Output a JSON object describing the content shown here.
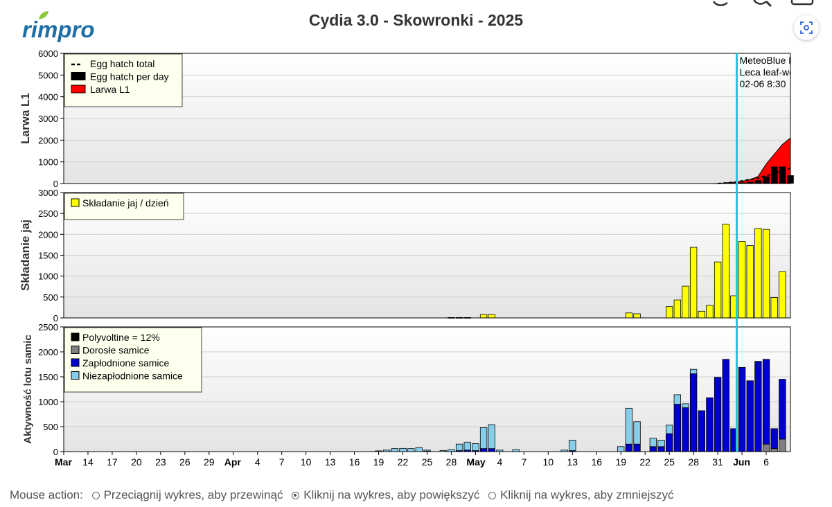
{
  "app": {
    "logo_text": "rimpro",
    "title": "Cydia 3.0 - Skowronki - 2025"
  },
  "mouse_action": {
    "label": "Mouse action:",
    "options": [
      {
        "label": "Przeciągnij wykres, aby przewinąć",
        "selected": false
      },
      {
        "label": "Kliknij na wykres, aby powiększyć",
        "selected": true
      },
      {
        "label": "Kliknij na wykres, aby zmniejszyć",
        "selected": false
      }
    ]
  },
  "colors": {
    "accent_line": "#26c6da",
    "larwa": "#ff0000",
    "egg_bar": "#000000",
    "skladanie": "#ffff00",
    "polyvoltine": "#000000",
    "dorosle": "#808080",
    "zaplodnione": "#0000cc",
    "niezaplodnione": "#87ceeb",
    "logo_blue": "#1d6fa5",
    "logo_leaf": "#8dc63f"
  },
  "icons": [
    "search-icon",
    "print-icon",
    "focus-icon"
  ],
  "chart_data": {
    "type": "bar",
    "x_axis": {
      "start": "2025-03-11",
      "end": "2025-06-09",
      "tick_labels": [
        "Mar",
        "14",
        "17",
        "20",
        "23",
        "26",
        "29",
        "Apr",
        "4",
        "7",
        "10",
        "13",
        "16",
        "19",
        "22",
        "25",
        "28",
        "May",
        "4",
        "7",
        "10",
        "13",
        "16",
        "19",
        "22",
        "25",
        "28",
        "31",
        "Jun",
        "6"
      ],
      "tick_dates": [
        "2025-03-11",
        "2025-03-14",
        "2025-03-17",
        "2025-03-20",
        "2025-03-23",
        "2025-03-26",
        "2025-03-29",
        "2025-04-01",
        "2025-04-04",
        "2025-04-07",
        "2025-04-10",
        "2025-04-13",
        "2025-04-16",
        "2025-04-19",
        "2025-04-22",
        "2025-04-25",
        "2025-04-28",
        "2025-05-01",
        "2025-05-04",
        "2025-05-07",
        "2025-05-10",
        "2025-05-13",
        "2025-05-16",
        "2025-05-19",
        "2025-05-22",
        "2025-05-25",
        "2025-05-28",
        "2025-05-31",
        "2025-06-03",
        "2025-06-06"
      ],
      "bold_labels": [
        "Mar",
        "Apr",
        "May",
        "Jun"
      ]
    },
    "forecast_marker": {
      "date": "2025-06-02",
      "lines": [
        "MeteoBlue Prognoza",
        "Leca leaf-wetness",
        "02-06 8:30"
      ]
    },
    "panels": [
      {
        "id": "larwa",
        "ylabel": "Larwa L1",
        "ylim": [
          0,
          6000
        ],
        "yticks": [
          0,
          1000,
          2000,
          3000,
          4000,
          5000,
          6000
        ],
        "legend": [
          "Egg hatch total",
          "Egg hatch per day",
          "Larwa L1"
        ],
        "larwa_area": [
          {
            "date": "2025-05-31",
            "value": 0
          },
          {
            "date": "2025-06-01",
            "value": 30
          },
          {
            "date": "2025-06-02",
            "value": 60
          },
          {
            "date": "2025-06-03",
            "value": 100
          },
          {
            "date": "2025-06-04",
            "value": 180
          },
          {
            "date": "2025-06-05",
            "value": 330
          },
          {
            "date": "2025-06-06",
            "value": 900
          },
          {
            "date": "2025-06-07",
            "value": 1350
          },
          {
            "date": "2025-06-08",
            "value": 1800
          },
          {
            "date": "2025-06-09",
            "value": 2100
          }
        ],
        "egg_hatch_total": [
          {
            "date": "2025-05-31",
            "value": 0
          },
          {
            "date": "2025-06-02",
            "value": 60
          },
          {
            "date": "2025-06-05",
            "value": 250
          },
          {
            "date": "2025-06-09",
            "value": 700
          }
        ],
        "egg_hatch_per_day": [
          {
            "date": "2025-05-30",
            "value": 10
          },
          {
            "date": "2025-05-31",
            "value": 20
          },
          {
            "date": "2025-06-01",
            "value": 30
          },
          {
            "date": "2025-06-02",
            "value": 30
          },
          {
            "date": "2025-06-03",
            "value": 50
          },
          {
            "date": "2025-06-04",
            "value": 80
          },
          {
            "date": "2025-06-05",
            "value": 150
          },
          {
            "date": "2025-06-06",
            "value": 330
          },
          {
            "date": "2025-06-07",
            "value": 780
          },
          {
            "date": "2025-06-08",
            "value": 780
          },
          {
            "date": "2025-06-09",
            "value": 380
          }
        ]
      },
      {
        "id": "skladanie",
        "ylabel": "Składanie jaj",
        "ylim": [
          0,
          3000
        ],
        "yticks": [
          0,
          500,
          1000,
          1500,
          2000,
          2500,
          3000
        ],
        "legend": [
          "Składanie jaj / dzień"
        ],
        "series": [
          {
            "date": "2025-04-28",
            "value": 10
          },
          {
            "date": "2025-04-29",
            "value": 10
          },
          {
            "date": "2025-04-30",
            "value": 10
          },
          {
            "date": "2025-05-02",
            "value": 80
          },
          {
            "date": "2025-05-03",
            "value": 80
          },
          {
            "date": "2025-05-20",
            "value": 120
          },
          {
            "date": "2025-05-21",
            "value": 100
          },
          {
            "date": "2025-05-25",
            "value": 270
          },
          {
            "date": "2025-05-26",
            "value": 430
          },
          {
            "date": "2025-05-27",
            "value": 760
          },
          {
            "date": "2025-05-28",
            "value": 1690
          },
          {
            "date": "2025-05-29",
            "value": 160
          },
          {
            "date": "2025-05-30",
            "value": 300
          },
          {
            "date": "2025-05-31",
            "value": 1340
          },
          {
            "date": "2025-06-01",
            "value": 2240
          },
          {
            "date": "2025-06-02",
            "value": 530
          },
          {
            "date": "2025-06-03",
            "value": 1830
          },
          {
            "date": "2025-06-04",
            "value": 1730
          },
          {
            "date": "2025-06-05",
            "value": 2140
          },
          {
            "date": "2025-06-06",
            "value": 2120
          },
          {
            "date": "2025-06-07",
            "value": 490
          },
          {
            "date": "2025-06-08",
            "value": 1110
          }
        ]
      },
      {
        "id": "aktywnosc",
        "ylabel": "Aktywność lotu samic",
        "ylim": [
          0,
          2500
        ],
        "yticks": [
          0,
          500,
          1000,
          1500,
          2000,
          2500
        ],
        "legend": [
          "Polyvoltine = 12%",
          "Dorosłe samice",
          "Zapłodnione samice",
          "Niezapłodnione samice"
        ],
        "series": [
          {
            "date": "2025-04-19",
            "dorosle": 0,
            "zaplodnione": 0,
            "niezaplodnione": 15
          },
          {
            "date": "2025-04-20",
            "dorosle": 0,
            "zaplodnione": 0,
            "niezaplodnione": 30
          },
          {
            "date": "2025-04-21",
            "dorosle": 0,
            "zaplodnione": 0,
            "niezaplodnione": 60
          },
          {
            "date": "2025-04-22",
            "dorosle": 0,
            "zaplodnione": 0,
            "niezaplodnione": 65
          },
          {
            "date": "2025-04-23",
            "dorosle": 0,
            "zaplodnione": 0,
            "niezaplodnione": 60
          },
          {
            "date": "2025-04-24",
            "dorosle": 0,
            "zaplodnione": 0,
            "niezaplodnione": 80
          },
          {
            "date": "2025-04-25",
            "dorosle": 0,
            "zaplodnione": 10,
            "niezaplodnione": 20
          },
          {
            "date": "2025-04-27",
            "dorosle": 0,
            "zaplodnione": 0,
            "niezaplodnione": 20
          },
          {
            "date": "2025-04-28",
            "dorosle": 0,
            "zaplodnione": 0,
            "niezaplodnione": 40
          },
          {
            "date": "2025-04-29",
            "dorosle": 0,
            "zaplodnione": 20,
            "niezaplodnione": 130
          },
          {
            "date": "2025-04-30",
            "dorosle": 0,
            "zaplodnione": 30,
            "niezaplodnione": 160
          },
          {
            "date": "2025-05-01",
            "dorosle": 0,
            "zaplodnione": 20,
            "niezaplodnione": 140
          },
          {
            "date": "2025-05-02",
            "dorosle": 0,
            "zaplodnione": 60,
            "niezaplodnione": 420
          },
          {
            "date": "2025-05-03",
            "dorosle": 0,
            "zaplodnione": 60,
            "niezaplodnione": 480
          },
          {
            "date": "2025-05-04",
            "dorosle": 0,
            "zaplodnione": 0,
            "niezaplodnione": 30
          },
          {
            "date": "2025-05-06",
            "dorosle": 0,
            "zaplodnione": 0,
            "niezaplodnione": 40
          },
          {
            "date": "2025-05-12",
            "dorosle": 0,
            "zaplodnione": 0,
            "niezaplodnione": 30
          },
          {
            "date": "2025-05-13",
            "dorosle": 0,
            "zaplodnione": 20,
            "niezaplodnione": 210
          },
          {
            "date": "2025-05-19",
            "dorosle": 0,
            "zaplodnione": 0,
            "niezaplodnione": 100
          },
          {
            "date": "2025-05-20",
            "dorosle": 0,
            "zaplodnione": 150,
            "niezaplodnione": 720
          },
          {
            "date": "2025-05-21",
            "dorosle": 0,
            "zaplodnione": 150,
            "niezaplodnione": 450
          },
          {
            "date": "2025-05-23",
            "dorosle": 0,
            "zaplodnione": 100,
            "niezaplodnione": 170
          },
          {
            "date": "2025-05-24",
            "dorosle": 0,
            "zaplodnione": 100,
            "niezaplodnione": 130
          },
          {
            "date": "2025-05-25",
            "dorosle": 0,
            "zaplodnione": 360,
            "niezaplodnione": 170
          },
          {
            "date": "2025-05-26",
            "dorosle": 0,
            "zaplodnione": 950,
            "niezaplodnione": 190
          },
          {
            "date": "2025-05-27",
            "dorosle": 0,
            "zaplodnione": 880,
            "niezaplodnione": 80
          },
          {
            "date": "2025-05-28",
            "dorosle": 0,
            "zaplodnione": 1560,
            "niezaplodnione": 90
          },
          {
            "date": "2025-05-29",
            "dorosle": 0,
            "zaplodnione": 820,
            "niezaplodnione": 0
          },
          {
            "date": "2025-05-30",
            "dorosle": 0,
            "zaplodnione": 1080,
            "niezaplodnione": 0
          },
          {
            "date": "2025-05-31",
            "dorosle": 0,
            "zaplodnione": 1490,
            "niezaplodnione": 0
          },
          {
            "date": "2025-06-01",
            "dorosle": 0,
            "zaplodnione": 1850,
            "niezaplodnione": 0
          },
          {
            "date": "2025-06-02",
            "dorosle": 0,
            "zaplodnione": 460,
            "niezaplodnione": 0
          },
          {
            "date": "2025-06-03",
            "dorosle": 0,
            "zaplodnione": 1690,
            "niezaplodnione": 0
          },
          {
            "date": "2025-06-04",
            "dorosle": 0,
            "zaplodnione": 1420,
            "niezaplodnione": 0
          },
          {
            "date": "2025-06-05",
            "dorosle": 0,
            "zaplodnione": 1810,
            "niezaplodnione": 0
          },
          {
            "date": "2025-06-06",
            "dorosle": 150,
            "zaplodnione": 1700,
            "niezaplodnione": 0
          },
          {
            "date": "2025-06-07",
            "dorosle": 60,
            "zaplodnione": 400,
            "niezaplodnione": 0
          },
          {
            "date": "2025-06-08",
            "dorosle": 250,
            "zaplodnione": 1200,
            "niezaplodnione": 0
          }
        ]
      }
    ]
  }
}
